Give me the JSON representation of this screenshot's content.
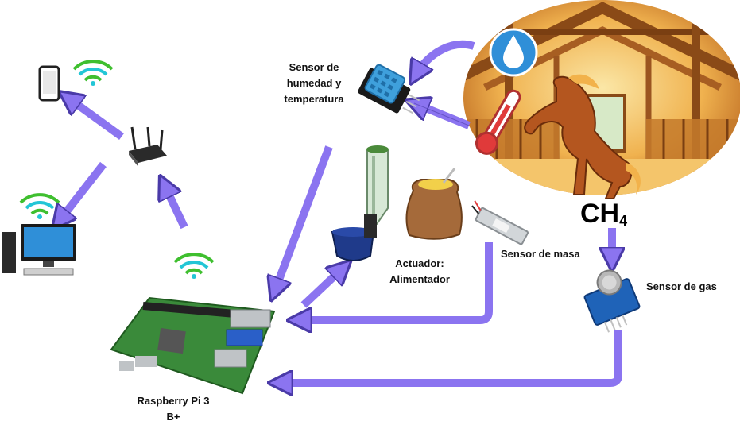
{
  "labels": {
    "humidity_sensor": [
      "Sensor de",
      "humedad y",
      "temperatura"
    ],
    "feeder": [
      "Actuador:",
      "Alimentador"
    ],
    "mass_sensor": "Sensor de masa",
    "gas_sensor": "Sensor de gas",
    "raspberry": [
      "Raspberry Pi 3",
      "B+"
    ],
    "gas_formula": "CH",
    "gas_formula_sub": "4"
  },
  "colors": {
    "arrow": "#8b74f0",
    "arrow_stroke": "#4a3aa8",
    "wifi_green": "#3fbf2f",
    "wifi_cyan": "#23c6d6",
    "barn_wood": "#c47a2c",
    "horse": "#b4561f",
    "board_green": "#3a8a3a",
    "sensor_blue": "#1f63b8"
  }
}
